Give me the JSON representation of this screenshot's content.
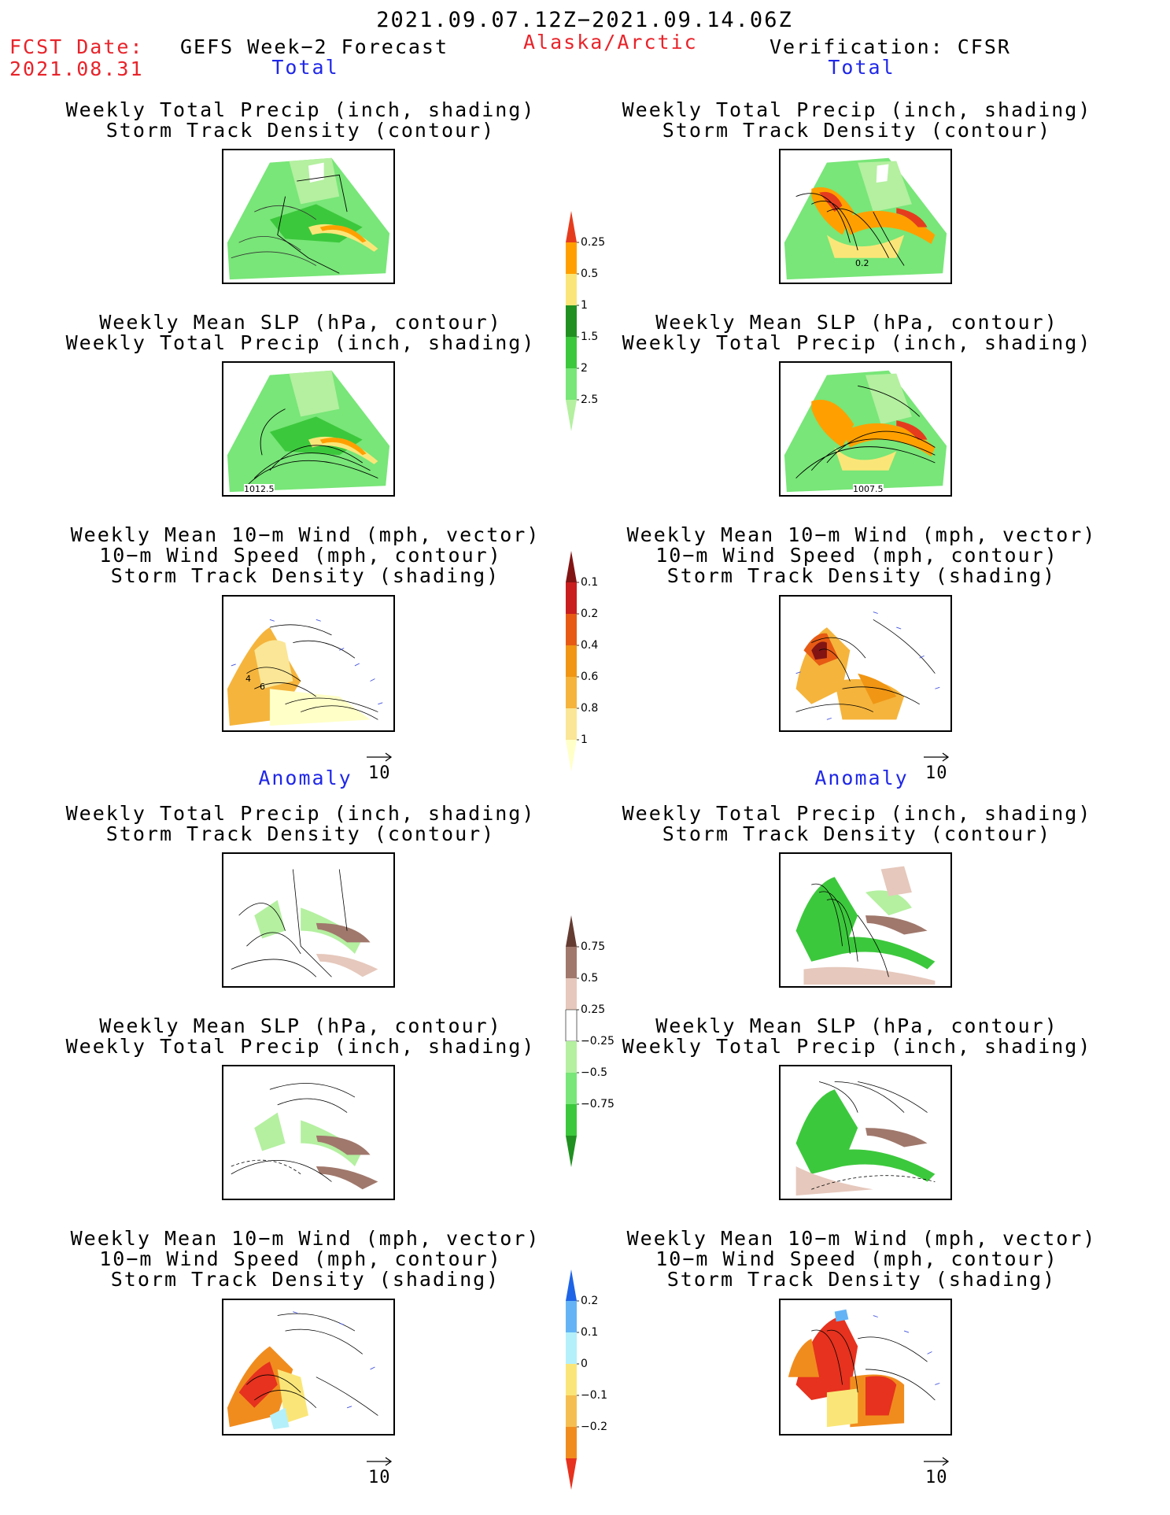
{
  "header": {
    "period": "2021.09.07.12Z−2021.09.14.06Z",
    "fcst_label": "FCST Date:",
    "fcst_date": "2021.08.31",
    "model": "GEFS Week−2 Forecast",
    "region": "Alaska/Arctic",
    "verification": "Verification: CFSR"
  },
  "sections": {
    "total_left": "Total",
    "total_right": "Total",
    "anomaly_left": "Anomaly",
    "anomaly_right": "Anomaly"
  },
  "titles": {
    "precip_storm": [
      "Weekly Total Precip (inch, shading)",
      "Storm Track Density (contour)"
    ],
    "slp_precip": [
      "Weekly Mean SLP (hPa, contour)",
      "Weekly Total Precip (inch, shading)"
    ],
    "wind_storm": [
      "Weekly Mean 10−m Wind (mph, vector)",
      "10−m Wind Speed (mph, contour)",
      "Storm Track Density (shading)"
    ]
  },
  "panel_labels": {
    "total_left_precip": "",
    "total_right_precip": "0.2",
    "total_left_slp": "1012.5",
    "total_right_slp": "1007.5",
    "wind_left_contour": "4",
    "wind_left_contour2": "6"
  },
  "vector_ref": "10",
  "colorbars": {
    "precip_total": {
      "labels": [
        "0.25",
        "0.5",
        "1",
        "1.5",
        "2",
        "2.5"
      ],
      "colors": [
        "#b4f0a0",
        "#78e678",
        "#3cc83c",
        "#209020",
        "#fae678",
        "#ffa000",
        "#e63c1e"
      ]
    },
    "storm_total": {
      "labels": [
        "0.1",
        "0.2",
        "0.4",
        "0.6",
        "0.8",
        "1"
      ],
      "colors": [
        "#ffffc8",
        "#fae696",
        "#f5b43c",
        "#f09614",
        "#e65a14",
        "#c81e1e",
        "#821414"
      ]
    },
    "precip_anom": {
      "labels": [
        "0.75",
        "0.5",
        "0.25",
        "−0.25",
        "−0.5",
        "−0.75"
      ],
      "colors": [
        "#209020",
        "#3cc83c",
        "#78e678",
        "#b4f0a0",
        "#ffffff",
        "#e6c8bc",
        "#a0786c",
        "#643c32"
      ]
    },
    "storm_anom": {
      "labels": [
        "0.2",
        "0.1",
        "0",
        "−0.1",
        "−0.2"
      ],
      "colors": [
        "#e6321e",
        "#f08c1e",
        "#f5be50",
        "#fae678",
        "#b4f0fa",
        "#64b4f5",
        "#1e64e6"
      ]
    }
  },
  "colors": {
    "red_text": "#e8232a",
    "blue_text": "#1f27e8"
  }
}
